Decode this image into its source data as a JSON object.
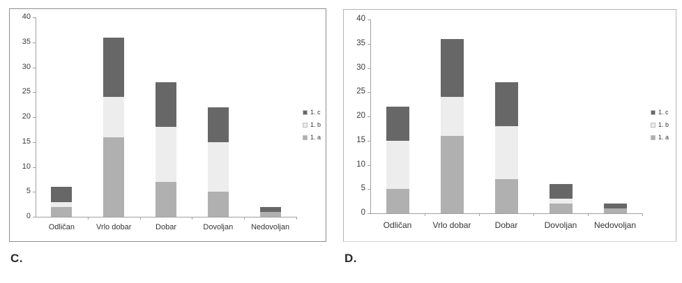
{
  "figure_labels": {
    "c": "C.",
    "d": "D."
  },
  "colors": {
    "series_a": "#b0b0b0",
    "series_b": "#ededed",
    "series_c": "#676767",
    "axis": "#a0a0a0",
    "tick_text": "#3a3a3a",
    "category_text": "#333333",
    "panel_border_c": "#8d8d8d",
    "panel_border_d": "#b3b3b3",
    "figure_label_text": "#27272f"
  },
  "chart_data": [
    {
      "id": "C",
      "type": "bar",
      "stacked": true,
      "title": "",
      "xlabel": "",
      "ylabel": "",
      "categories": [
        "Odličan",
        "Vrlo dobar",
        "Dobar",
        "Dovoljan",
        "Nedovoljan"
      ],
      "series": [
        {
          "name": "1. a",
          "color": "#b0b0b0",
          "values": [
            2,
            16,
            7,
            5,
            1
          ]
        },
        {
          "name": "1. b",
          "color": "#ededed",
          "values": [
            1,
            8,
            11,
            10,
            0
          ]
        },
        {
          "name": "1. c",
          "color": "#676767",
          "values": [
            3,
            12,
            9,
            7,
            1
          ]
        }
      ],
      "totals": [
        6,
        36,
        27,
        22,
        2
      ],
      "ylim": [
        0,
        40
      ],
      "ytick_step": 5,
      "ytick_labels": [
        "0",
        "5",
        "10",
        "15",
        "20",
        "25",
        "30",
        "35",
        "40"
      ],
      "grid": false,
      "legend": [
        "1. c",
        "1. b",
        "1. a"
      ],
      "legend_position": "right"
    },
    {
      "id": "D",
      "type": "bar",
      "stacked": true,
      "title": "",
      "xlabel": "",
      "ylabel": "",
      "categories": [
        "Odličan",
        "Vrlo dobar",
        "Dobar",
        "Dovoljan",
        "Nedovoljan"
      ],
      "series": [
        {
          "name": "1. a",
          "color": "#b0b0b0",
          "values": [
            5,
            16,
            7,
            2,
            1
          ]
        },
        {
          "name": "1. b",
          "color": "#ededed",
          "values": [
            10,
            8,
            11,
            1,
            0
          ]
        },
        {
          "name": "1. c",
          "color": "#676767",
          "values": [
            7,
            12,
            9,
            3,
            1
          ]
        }
      ],
      "totals": [
        22,
        36,
        27,
        6,
        2
      ],
      "ylim": [
        0,
        40
      ],
      "ytick_step": 5,
      "ytick_labels": [
        "0",
        "5",
        "10",
        "15",
        "20",
        "25",
        "30",
        "35",
        "40"
      ],
      "grid": false,
      "legend": [
        "1. c",
        "1. b",
        "1. a"
      ],
      "legend_position": "right"
    }
  ]
}
